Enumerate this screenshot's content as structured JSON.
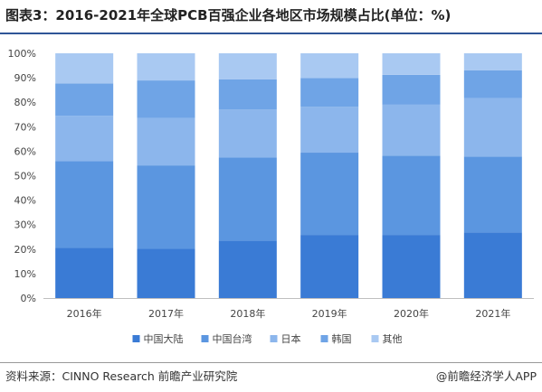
{
  "title": "图表3：2016-2021年全球PCB百强企业各地区市场规模占比(单位：%)",
  "source": "资料来源：CINNO Research 前瞻产业研究院",
  "brand": "@前瞻经济学人APP",
  "chart_data": {
    "type": "bar",
    "stacked": true,
    "categories": [
      "2016年",
      "2017年",
      "2018年",
      "2019年",
      "2020年",
      "2021年"
    ],
    "series": [
      {
        "name": "中国大陆",
        "color": "#3a7bd5",
        "values": [
          20.5,
          20.1,
          23.4,
          25.8,
          25.8,
          26.8
        ]
      },
      {
        "name": "中国台湾",
        "color": "#5b96e0",
        "values": [
          35.5,
          34.1,
          34.0,
          33.6,
          32.4,
          31.0
        ]
      },
      {
        "name": "日本",
        "color": "#8cb6ec",
        "values": [
          18.5,
          19.3,
          19.6,
          18.8,
          20.8,
          23.9
        ]
      },
      {
        "name": "韩国",
        "color": "#6fa4e6",
        "values": [
          13.2,
          15.4,
          12.4,
          11.7,
          12.2,
          11.3
        ]
      },
      {
        "name": "其他",
        "color": "#a9c9f2",
        "values": [
          12.3,
          11.1,
          10.6,
          10.1,
          8.8,
          7.0
        ]
      }
    ],
    "ylim": [
      0,
      100
    ],
    "yticks": [
      "0%",
      "10%",
      "20%",
      "30%",
      "40%",
      "50%",
      "60%",
      "70%",
      "80%",
      "90%",
      "100%"
    ],
    "grid": false,
    "legend": "bottom"
  }
}
